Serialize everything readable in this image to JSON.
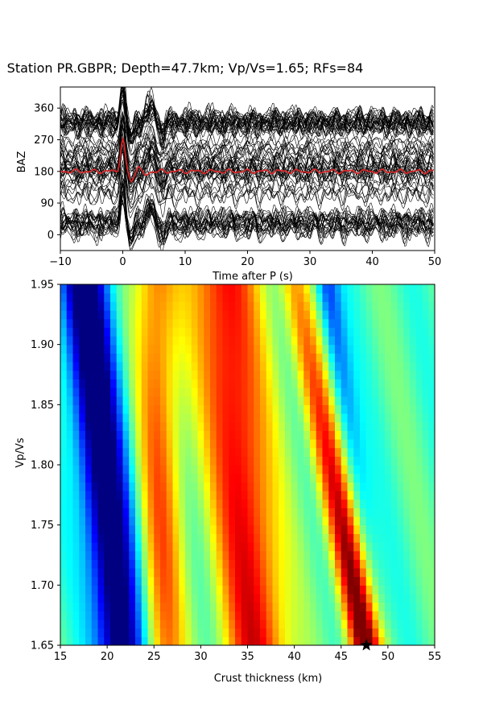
{
  "chart_data": [
    {
      "type": "line",
      "title": "Station PR.GBPR; Depth=47.7km; Vp/Vs=1.65; RFs=84",
      "xlabel": "Time after P (s)",
      "ylabel": "BAZ",
      "xlim": [
        -10,
        50
      ],
      "ylim": [
        -45,
        420
      ],
      "xticks": [
        "−10",
        "0",
        "10",
        "20",
        "30",
        "40",
        "50"
      ],
      "yticks": [
        "0",
        "90",
        "180",
        "270",
        "360"
      ],
      "series": [
        {
          "color": "#000000",
          "count": 84
        },
        {
          "color": "#d62728",
          "baz": 180
        }
      ],
      "grid": false
    },
    {
      "type": "heatmap",
      "xlabel": "Crust thickness (km)",
      "ylabel": "Vp/Vs",
      "xlim": [
        15,
        55
      ],
      "ylim": [
        1.65,
        1.95
      ],
      "xticks": [
        "15",
        "20",
        "25",
        "30",
        "35",
        "40",
        "45",
        "50",
        "55"
      ],
      "yticks": [
        "1.65",
        "1.70",
        "1.75",
        "1.80",
        "1.85",
        "1.90",
        "1.95"
      ],
      "colormap": "jet",
      "best_point": {
        "H": 47.7,
        "k": 1.65,
        "marker": "star"
      }
    }
  ]
}
